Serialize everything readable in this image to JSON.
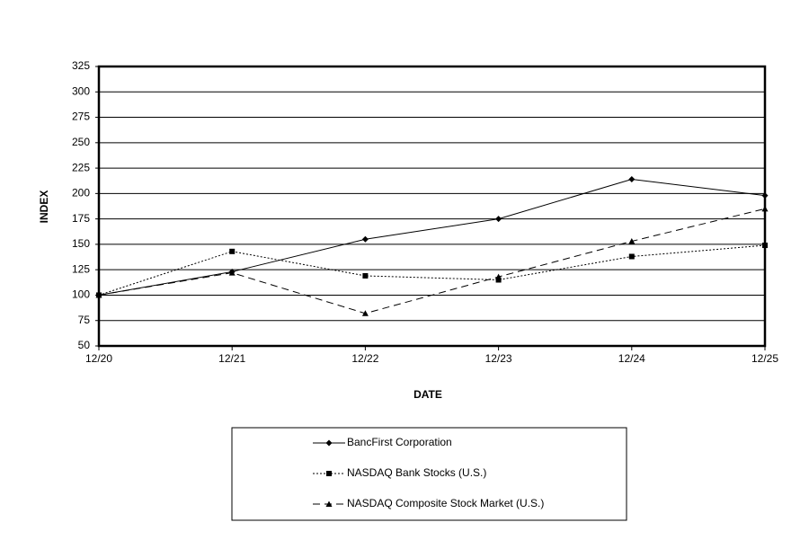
{
  "chart_data": {
    "type": "line",
    "x_label": "DATE",
    "y_label": "INDEX",
    "categories": [
      "12/20",
      "12/21",
      "12/22",
      "12/23",
      "12/24",
      "12/25"
    ],
    "series": [
      {
        "name": "BancFirst Corporation",
        "color": "#000000",
        "dash": "solid",
        "marker": "diamond",
        "values": [
          100,
          123,
          155,
          175,
          214,
          198
        ]
      },
      {
        "name": "NASDAQ Bank Stocks (U.S.)",
        "color": "#000000",
        "dash": "dotted",
        "marker": "square",
        "values": [
          100,
          143,
          119,
          115,
          138,
          149
        ]
      },
      {
        "name": "NASDAQ Composite Stock Market (U.S.)",
        "color": "#000000",
        "dash": "dashed",
        "marker": "triangle",
        "values": [
          100,
          122,
          82,
          118,
          153,
          185
        ]
      }
    ],
    "ylim": [
      50,
      325
    ],
    "yticks": [
      50,
      75,
      100,
      125,
      150,
      175,
      200,
      225,
      250,
      275,
      300,
      325
    ],
    "grid": true,
    "legend": "bottom"
  }
}
